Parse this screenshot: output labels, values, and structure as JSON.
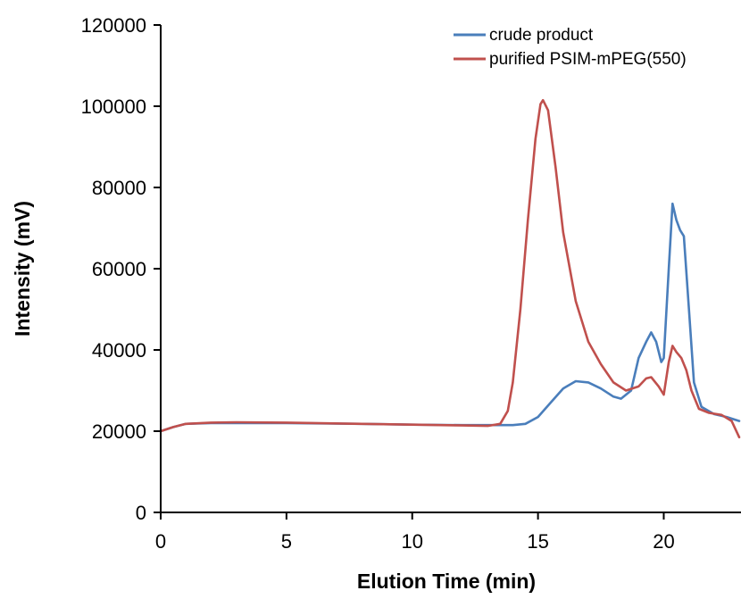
{
  "chart_data": {
    "type": "line",
    "title": "",
    "xlabel": "Elution Time (min)",
    "ylabel": "Intensity (mV)",
    "xlim": [
      0,
      23
    ],
    "ylim": [
      0,
      120000
    ],
    "x_ticks": [
      0,
      5,
      10,
      15,
      20
    ],
    "y_ticks": [
      0,
      20000,
      40000,
      60000,
      80000,
      100000,
      120000
    ],
    "x_tick_labels": [
      "0",
      "5",
      "10",
      "15",
      "20"
    ],
    "y_tick_labels": [
      "0",
      "20000",
      "40000",
      "60000",
      "80000",
      "100000",
      "120000"
    ],
    "grid": false,
    "legend_position": "top-right",
    "series": [
      {
        "name": "crude product",
        "color": "#4a7ebb",
        "points": [
          [
            0,
            20000
          ],
          [
            0.5,
            21000
          ],
          [
            1,
            21800
          ],
          [
            2,
            22000
          ],
          [
            3,
            22000
          ],
          [
            5,
            22000
          ],
          [
            8,
            21800
          ],
          [
            10,
            21600
          ],
          [
            12,
            21500
          ],
          [
            13,
            21500
          ],
          [
            14,
            21500
          ],
          [
            14.5,
            21800
          ],
          [
            15,
            23500
          ],
          [
            15.5,
            27000
          ],
          [
            16,
            30500
          ],
          [
            16.5,
            32300
          ],
          [
            17,
            32000
          ],
          [
            17.5,
            30500
          ],
          [
            18,
            28500
          ],
          [
            18.3,
            28000
          ],
          [
            18.7,
            30000
          ],
          [
            19,
            38000
          ],
          [
            19.3,
            42000
          ],
          [
            19.5,
            44300
          ],
          [
            19.7,
            42000
          ],
          [
            19.9,
            37000
          ],
          [
            20,
            38000
          ],
          [
            20.2,
            60000
          ],
          [
            20.35,
            76000
          ],
          [
            20.5,
            72000
          ],
          [
            20.65,
            69500
          ],
          [
            20.8,
            68000
          ],
          [
            21,
            50000
          ],
          [
            21.2,
            32000
          ],
          [
            21.5,
            26000
          ],
          [
            22,
            24200
          ],
          [
            22.5,
            23500
          ],
          [
            23,
            22500
          ]
        ]
      },
      {
        "name": "purified PSIM-mPEG(550)",
        "color": "#c0504d",
        "points": [
          [
            0,
            20000
          ],
          [
            0.5,
            21000
          ],
          [
            1,
            21800
          ],
          [
            2,
            22100
          ],
          [
            3,
            22200
          ],
          [
            5,
            22100
          ],
          [
            8,
            21800
          ],
          [
            10,
            21600
          ],
          [
            12,
            21400
          ],
          [
            13,
            21300
          ],
          [
            13.5,
            21800
          ],
          [
            13.8,
            25000
          ],
          [
            14,
            32000
          ],
          [
            14.3,
            50000
          ],
          [
            14.6,
            72000
          ],
          [
            14.9,
            92000
          ],
          [
            15.1,
            100500
          ],
          [
            15.2,
            101500
          ],
          [
            15.4,
            99000
          ],
          [
            15.7,
            85000
          ],
          [
            16,
            69000
          ],
          [
            16.5,
            52000
          ],
          [
            17,
            42000
          ],
          [
            17.5,
            36500
          ],
          [
            18,
            32000
          ],
          [
            18.5,
            30000
          ],
          [
            19,
            31000
          ],
          [
            19.3,
            33000
          ],
          [
            19.5,
            33300
          ],
          [
            19.8,
            31000
          ],
          [
            20,
            29000
          ],
          [
            20.2,
            37000
          ],
          [
            20.35,
            41000
          ],
          [
            20.5,
            39500
          ],
          [
            20.7,
            38000
          ],
          [
            20.9,
            35000
          ],
          [
            21.1,
            30000
          ],
          [
            21.4,
            25500
          ],
          [
            21.8,
            24500
          ],
          [
            22.3,
            24000
          ],
          [
            22.7,
            22500
          ],
          [
            23,
            18500
          ]
        ]
      }
    ]
  }
}
